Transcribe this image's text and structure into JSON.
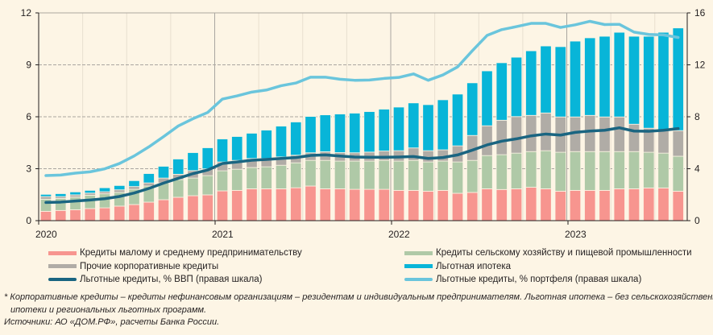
{
  "chart_data": {
    "type": "bar",
    "stacked": true,
    "x": [
      "01.2020",
      "02.2020",
      "03.2020",
      "04.2020",
      "05.2020",
      "06.2020",
      "07.2020",
      "08.2020",
      "09.2020",
      "10.2020",
      "11.2020",
      "12.2020",
      "01.2021",
      "02.2021",
      "03.2021",
      "04.2021",
      "05.2021",
      "06.2021",
      "07.2021",
      "08.2021",
      "09.2021",
      "10.2021",
      "11.2021",
      "12.2021",
      "01.2022",
      "02.2022",
      "03.2022",
      "04.2022",
      "05.2022",
      "06.2022",
      "07.2022",
      "08.2022",
      "09.2022",
      "10.2022",
      "11.2022",
      "12.2022",
      "01.2023",
      "02.2023",
      "03.2023",
      "04.2023",
      "05.2023",
      "06.2023",
      "07.2023",
      "08.2023"
    ],
    "x_tick_labels": [
      "2020",
      "2021",
      "2022",
      "2023"
    ],
    "y_left": {
      "min": 0,
      "max": 12,
      "ticks": [
        "0",
        "3",
        "6",
        "9",
        "12"
      ]
    },
    "y_right": {
      "min": 0,
      "max": 16,
      "ticks": [
        "0",
        "4",
        "8",
        "12",
        "16"
      ]
    },
    "grid": true,
    "series": [
      {
        "name": "Кредиты малому и среднему предпринимательству",
        "color": "#f7958f",
        "axis": "left",
        "kind": "bar",
        "values": [
          0.54,
          0.59,
          0.63,
          0.7,
          0.74,
          0.84,
          0.93,
          1.07,
          1.21,
          1.35,
          1.44,
          1.49,
          1.72,
          1.75,
          1.84,
          1.84,
          1.84,
          1.9,
          2.0,
          1.84,
          1.84,
          1.81,
          1.81,
          1.81,
          1.75,
          1.75,
          1.7,
          1.75,
          1.58,
          1.63,
          1.84,
          1.8,
          1.84,
          1.93,
          1.84,
          1.7,
          1.75,
          1.75,
          1.75,
          1.84,
          1.84,
          1.89,
          1.89,
          1.7
        ]
      },
      {
        "name": "Кредиты сельскому хозяйству и пищевой промышленности",
        "color": "#afc9a7",
        "axis": "left",
        "kind": "bar",
        "values": [
          0.7,
          0.69,
          0.73,
          0.77,
          0.81,
          0.79,
          0.88,
          0.93,
          0.97,
          1.02,
          1.02,
          1.11,
          1.16,
          1.22,
          1.23,
          1.27,
          1.36,
          1.44,
          1.48,
          1.64,
          1.6,
          1.63,
          1.63,
          1.67,
          1.69,
          1.73,
          1.69,
          1.69,
          1.81,
          1.85,
          1.92,
          2.01,
          2.06,
          2.06,
          2.2,
          2.25,
          2.24,
          2.24,
          2.24,
          2.15,
          2.15,
          2.06,
          2.01,
          2.02
        ]
      },
      {
        "name": "Прочие корпоративные кредиты",
        "color": "#b0aca6",
        "axis": "left",
        "kind": "bar",
        "values": [
          0.15,
          0.11,
          0.13,
          0.12,
          0.12,
          0.15,
          0.16,
          0.18,
          0.28,
          0.31,
          0.43,
          0.39,
          0.51,
          0.51,
          0.52,
          0.48,
          0.48,
          0.44,
          0.44,
          0.5,
          0.49,
          0.48,
          0.52,
          0.54,
          0.6,
          0.72,
          0.65,
          0.65,
          0.93,
          1.44,
          1.72,
          1.99,
          2.11,
          2.09,
          2.18,
          2.04,
          2.0,
          2.09,
          2.0,
          2.0,
          1.58,
          1.39,
          1.33,
          1.48
        ]
      },
      {
        "name": "Льготная ипотека",
        "color": "#08b5d8",
        "axis": "left",
        "kind": "bar",
        "values": [
          0.13,
          0.17,
          0.17,
          0.16,
          0.23,
          0.25,
          0.34,
          0.54,
          0.68,
          0.88,
          1.04,
          1.22,
          1.33,
          1.38,
          1.46,
          1.64,
          1.78,
          1.92,
          2.1,
          2.13,
          2.23,
          2.29,
          2.34,
          2.42,
          2.52,
          2.6,
          2.66,
          2.89,
          2.99,
          3.04,
          3.17,
          3.32,
          3.43,
          3.73,
          3.87,
          4.06,
          4.38,
          4.48,
          4.66,
          4.89,
          5.08,
          5.31,
          5.65,
          5.93
        ]
      },
      {
        "name": "Льготные кредиты, % ВВП (правая шкала)",
        "color": "#1a6581",
        "axis": "right",
        "kind": "line",
        "values": [
          1.4,
          1.43,
          1.51,
          1.59,
          1.69,
          1.86,
          2.13,
          2.48,
          2.89,
          3.26,
          3.62,
          3.9,
          4.4,
          4.52,
          4.65,
          4.71,
          4.79,
          4.86,
          5.02,
          5.06,
          4.98,
          4.9,
          4.88,
          4.88,
          4.9,
          4.94,
          4.79,
          4.86,
          5.06,
          5.43,
          5.83,
          6.12,
          6.3,
          6.53,
          6.67,
          6.59,
          6.8,
          6.9,
          6.96,
          7.15,
          6.9,
          6.88,
          6.96,
          7.09
        ]
      },
      {
        "name": "Льготные кредиты, % портфеля (правая шкала)",
        "color": "#6ac5dc",
        "axis": "right",
        "kind": "line",
        "values": [
          3.47,
          3.51,
          3.66,
          3.76,
          3.99,
          4.4,
          4.98,
          5.68,
          6.47,
          7.29,
          7.85,
          8.33,
          9.36,
          9.61,
          9.9,
          10.06,
          10.39,
          10.6,
          11.05,
          11.05,
          10.89,
          10.81,
          10.83,
          10.95,
          11.03,
          11.3,
          10.81,
          11.22,
          11.84,
          13.08,
          14.26,
          14.71,
          14.94,
          15.19,
          15.19,
          14.88,
          15.08,
          15.35,
          15.1,
          15.12,
          14.52,
          14.34,
          14.3,
          14.11
        ]
      }
    ],
    "legend_placement": "bottom"
  },
  "footnote": {
    "line1": "* Корпоративные кредиты – кредиты нефинансовым организациям – резидентам и индивидуальным предпринимателям. Льготная ипотека – без сельскохозяйственной",
    "line2": "ипотеки и региональных льготных программ.",
    "sources": "Источники: АО «ДОМ.РФ», расчеты Банка России."
  }
}
